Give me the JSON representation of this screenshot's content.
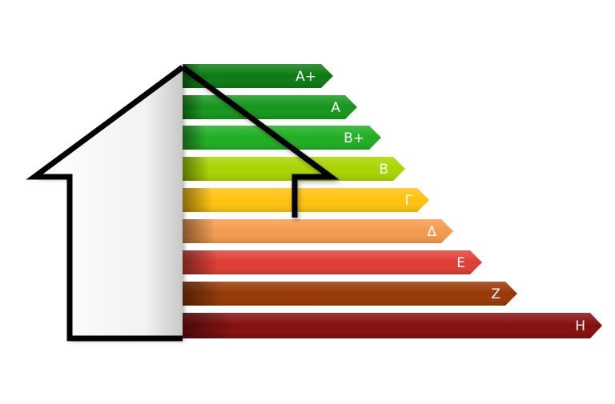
{
  "energy_label": {
    "classes": [
      {
        "label": "A+",
        "color": "#0c7a12"
      },
      {
        "label": "A",
        "color": "#15961c"
      },
      {
        "label": "B+",
        "color": "#1fae22"
      },
      {
        "label": "B",
        "color": "#a9d400"
      },
      {
        "label": "Γ",
        "color": "#ffc20e"
      },
      {
        "label": "Δ",
        "color": "#f59a4e"
      },
      {
        "label": "Ε",
        "color": "#df3d34"
      },
      {
        "label": "Ζ",
        "color": "#983805"
      },
      {
        "label": "Η",
        "color": "#850d0d"
      }
    ]
  },
  "house": {
    "icon": "house-outline-icon",
    "outline_color": "#000000"
  }
}
